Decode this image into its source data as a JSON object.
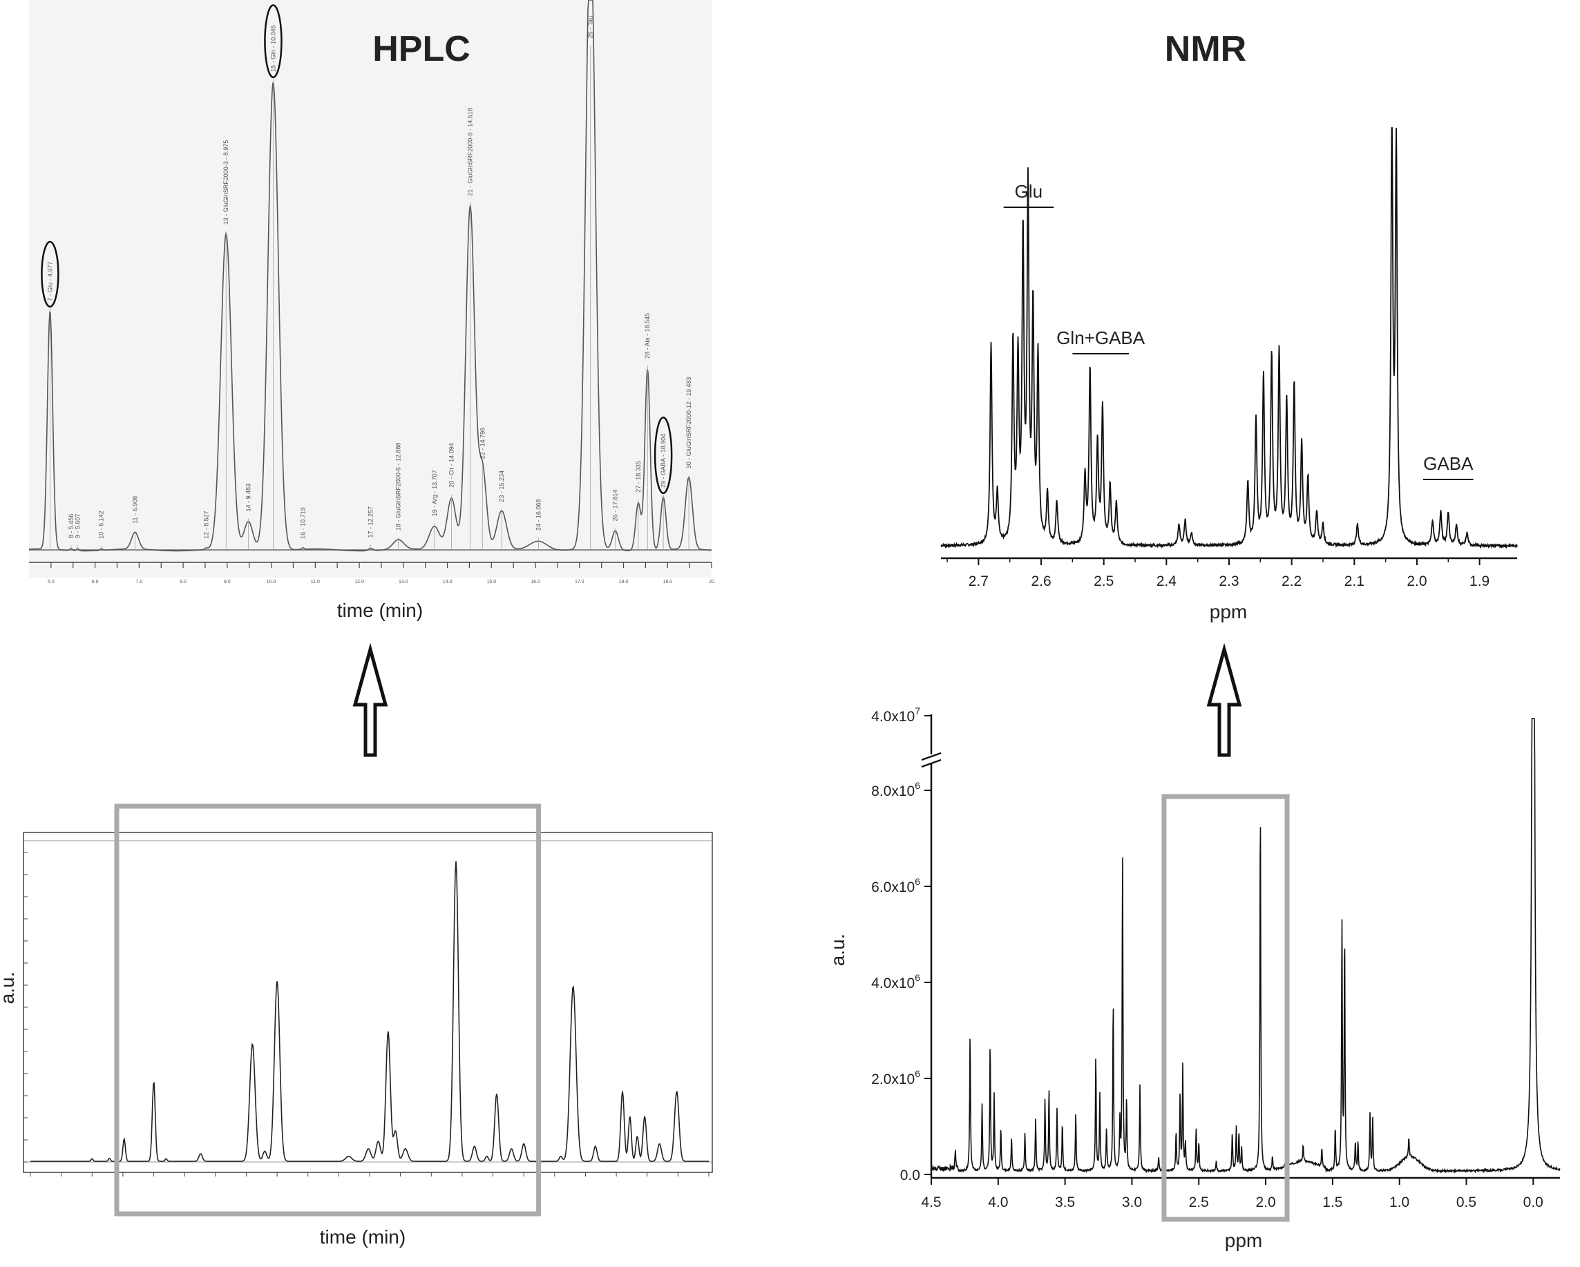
{
  "panels": {
    "hplc_zoom": {
      "title": "HPLC",
      "xlabel": "time (min)"
    },
    "nmr_zoom": {
      "title": "NMR",
      "xlabel": "ppm"
    },
    "hplc_full": {
      "xlabel": "time (min)",
      "ylabel": "a.u."
    },
    "nmr_full": {
      "xlabel": "ppm",
      "ylabel": "a.u."
    }
  },
  "chart_data": [
    {
      "id": "hplc_zoom",
      "type": "line",
      "title": "HPLC",
      "xlabel": "time (min)",
      "ylabel": "",
      "xlim": [
        4.5,
        20.0
      ],
      "ylim": [
        0,
        1.0
      ],
      "xticks": [
        "5.0",
        "5.5",
        "6.0",
        "6.5",
        "7.0",
        "7.5",
        "8.0",
        "8.5",
        "9.0",
        "9.5",
        "10.0",
        "10.5",
        "11.0",
        "11.5",
        "12.0",
        "12.5",
        "13.0",
        "13.5",
        "14.0",
        "14.5",
        "15.0",
        "15.5",
        "16.0",
        "16.5",
        "17.0",
        "17.5",
        "18.0",
        "18.5",
        "19.0",
        "19.5",
        "20"
      ],
      "peaks": [
        {
          "t": 4.977,
          "h": 0.5,
          "w": 0.06,
          "label": "7 - Glu - 4.977",
          "circled": true
        },
        {
          "t": 5.456,
          "h": 0.004,
          "w": 0.03,
          "label": "8 - 5.456"
        },
        {
          "t": 5.607,
          "h": 0.004,
          "w": 0.03,
          "label": "9 - 5.607"
        },
        {
          "t": 6.142,
          "h": 0.003,
          "w": 0.03,
          "label": "10 - 6.142"
        },
        {
          "t": 6.908,
          "h": 0.035,
          "w": 0.08,
          "label": "11 - 6.908"
        },
        {
          "t": 8.527,
          "h": 0.003,
          "w": 0.03,
          "label": "12 - 8.527"
        },
        {
          "t": 8.975,
          "h": 0.66,
          "w": 0.12,
          "label": "13 - GluGlnSRF2000-3 - 8.975"
        },
        {
          "t": 9.483,
          "h": 0.06,
          "w": 0.1,
          "label": "14 - 9.483"
        },
        {
          "t": 10.045,
          "h": 0.98,
          "w": 0.12,
          "label": "15 - Gln - 10.045",
          "circled": true
        },
        {
          "t": 10.719,
          "h": 0.003,
          "w": 0.03,
          "label": "16 - 10.719"
        },
        {
          "t": 12.257,
          "h": 0.005,
          "w": 0.05,
          "label": "17 - 12.257"
        },
        {
          "t": 12.888,
          "h": 0.02,
          "w": 0.12,
          "label": "18 - GluGlnSRF2000-5 - 12.888"
        },
        {
          "t": 13.707,
          "h": 0.05,
          "w": 0.12,
          "label": "19 - Arg - 13.707"
        },
        {
          "t": 14.094,
          "h": 0.11,
          "w": 0.1,
          "label": "20 - Cit - 14.094"
        },
        {
          "t": 14.518,
          "h": 0.72,
          "w": 0.1,
          "label": "21 - GluGlnSRF2000-8 - 14.518"
        },
        {
          "t": 14.796,
          "h": 0.17,
          "w": 0.09,
          "label": "22 - 14.796"
        },
        {
          "t": 15.234,
          "h": 0.08,
          "w": 0.11,
          "label": "23 - 15.234"
        },
        {
          "t": 16.068,
          "h": 0.02,
          "w": 0.2,
          "label": "24 - 16.068"
        },
        {
          "t": 17.25,
          "h": 1.3,
          "w": 0.11,
          "label": "25 - Tau"
        },
        {
          "t": 17.814,
          "h": 0.04,
          "w": 0.07,
          "label": "26 - 17.814"
        },
        {
          "t": 18.335,
          "h": 0.1,
          "w": 0.06,
          "label": "27 - 18.335"
        },
        {
          "t": 18.545,
          "h": 0.38,
          "w": 0.06,
          "label": "28 - Ala - 18.545"
        },
        {
          "t": 18.904,
          "h": 0.11,
          "w": 0.06,
          "label": "29 - GABA - 18.904",
          "circled": true
        },
        {
          "t": 19.483,
          "h": 0.15,
          "w": 0.08,
          "label": "30 - GluGlnSRF2000-12 - 19.483"
        }
      ]
    },
    {
      "id": "nmr_zoom",
      "type": "line",
      "title": "NMR",
      "xlabel": "ppm",
      "ylabel": "",
      "xlim": [
        2.76,
        1.84
      ],
      "ylim": [
        0,
        1.0
      ],
      "xticks": [
        "2.7",
        "2.6",
        "2.5",
        "2.4",
        "2.3",
        "2.2",
        "2.1",
        "2.0",
        "1.9"
      ],
      "annotations": [
        {
          "text": "Glu",
          "from": 2.66,
          "to": 2.58
        },
        {
          "text": "Gln+GABA",
          "from": 2.55,
          "to": 2.46
        },
        {
          "text": "GABA",
          "from": 1.99,
          "to": 1.91
        }
      ],
      "peaks": [
        {
          "ppm": 2.68,
          "h": 0.48
        },
        {
          "ppm": 2.67,
          "h": 0.12
        },
        {
          "ppm": 2.645,
          "h": 0.48
        },
        {
          "ppm": 2.637,
          "h": 0.43
        },
        {
          "ppm": 2.629,
          "h": 0.72
        },
        {
          "ppm": 2.621,
          "h": 0.83
        },
        {
          "ppm": 2.613,
          "h": 0.55
        },
        {
          "ppm": 2.605,
          "h": 0.44
        },
        {
          "ppm": 2.59,
          "h": 0.12
        },
        {
          "ppm": 2.575,
          "h": 0.1
        },
        {
          "ppm": 2.53,
          "h": 0.16
        },
        {
          "ppm": 2.522,
          "h": 0.42
        },
        {
          "ppm": 2.51,
          "h": 0.24
        },
        {
          "ppm": 2.502,
          "h": 0.33
        },
        {
          "ppm": 2.49,
          "h": 0.14
        },
        {
          "ppm": 2.48,
          "h": 0.1
        },
        {
          "ppm": 2.38,
          "h": 0.05
        },
        {
          "ppm": 2.37,
          "h": 0.06
        },
        {
          "ppm": 2.36,
          "h": 0.03
        },
        {
          "ppm": 2.27,
          "h": 0.15
        },
        {
          "ppm": 2.257,
          "h": 0.3
        },
        {
          "ppm": 2.245,
          "h": 0.4
        },
        {
          "ppm": 2.232,
          "h": 0.45
        },
        {
          "ppm": 2.22,
          "h": 0.46
        },
        {
          "ppm": 2.208,
          "h": 0.34
        },
        {
          "ppm": 2.196,
          "h": 0.38
        },
        {
          "ppm": 2.184,
          "h": 0.24
        },
        {
          "ppm": 2.174,
          "h": 0.16
        },
        {
          "ppm": 2.16,
          "h": 0.08
        },
        {
          "ppm": 2.15,
          "h": 0.05
        },
        {
          "ppm": 2.095,
          "h": 0.05
        },
        {
          "ppm": 2.04,
          "h": 1.0
        },
        {
          "ppm": 2.033,
          "h": 0.95
        },
        {
          "ppm": 1.975,
          "h": 0.06
        },
        {
          "ppm": 1.962,
          "h": 0.08
        },
        {
          "ppm": 1.95,
          "h": 0.08
        },
        {
          "ppm": 1.937,
          "h": 0.05
        },
        {
          "ppm": 1.92,
          "h": 0.03
        }
      ]
    },
    {
      "id": "hplc_full",
      "type": "line",
      "title": "",
      "xlabel": "time (min)",
      "ylabel": "a.u.",
      "xlim": [
        0.0,
        27.5
      ],
      "ylim": [
        0,
        1.0
      ],
      "highlight_box": {
        "from": 3.5,
        "to": 20.6
      },
      "peaks": [
        {
          "t": 2.5,
          "h": 0.01,
          "w": 0.04
        },
        {
          "t": 3.2,
          "h": 0.012,
          "w": 0.04
        },
        {
          "t": 3.8,
          "h": 0.09,
          "w": 0.05
        },
        {
          "t": 5.0,
          "h": 0.32,
          "w": 0.06
        },
        {
          "t": 5.5,
          "h": 0.01,
          "w": 0.04
        },
        {
          "t": 6.9,
          "h": 0.03,
          "w": 0.07
        },
        {
          "t": 9.0,
          "h": 0.47,
          "w": 0.11
        },
        {
          "t": 9.5,
          "h": 0.04,
          "w": 0.08
        },
        {
          "t": 10.0,
          "h": 0.72,
          "w": 0.11
        },
        {
          "t": 12.9,
          "h": 0.02,
          "w": 0.12
        },
        {
          "t": 13.7,
          "h": 0.05,
          "w": 0.1
        },
        {
          "t": 14.1,
          "h": 0.08,
          "w": 0.09
        },
        {
          "t": 14.5,
          "h": 0.52,
          "w": 0.09
        },
        {
          "t": 14.8,
          "h": 0.12,
          "w": 0.08
        },
        {
          "t": 15.2,
          "h": 0.05,
          "w": 0.1
        },
        {
          "t": 17.25,
          "h": 1.2,
          "w": 0.1
        },
        {
          "t": 18.0,
          "h": 0.06,
          "w": 0.08
        },
        {
          "t": 18.5,
          "h": 0.02,
          "w": 0.06
        },
        {
          "t": 18.9,
          "h": 0.27,
          "w": 0.08
        },
        {
          "t": 19.5,
          "h": 0.05,
          "w": 0.08
        },
        {
          "t": 20.0,
          "h": 0.07,
          "w": 0.08
        },
        {
          "t": 21.5,
          "h": 0.02,
          "w": 0.06
        },
        {
          "t": 22.0,
          "h": 0.7,
          "w": 0.12
        },
        {
          "t": 22.9,
          "h": 0.06,
          "w": 0.07
        },
        {
          "t": 24.0,
          "h": 0.28,
          "w": 0.07
        },
        {
          "t": 24.3,
          "h": 0.18,
          "w": 0.06
        },
        {
          "t": 24.6,
          "h": 0.1,
          "w": 0.06
        },
        {
          "t": 24.9,
          "h": 0.18,
          "w": 0.07
        },
        {
          "t": 25.5,
          "h": 0.07,
          "w": 0.08
        },
        {
          "t": 26.2,
          "h": 0.28,
          "w": 0.09
        }
      ]
    },
    {
      "id": "nmr_full",
      "type": "line",
      "title": "",
      "xlabel": "ppm",
      "ylabel": "a.u.",
      "xlim": [
        4.5,
        -0.2
      ],
      "y_axis_break": true,
      "yticks": [
        "0.0",
        "2.0x10^6",
        "4.0x10^6",
        "6.0x10^6",
        "8.0x10^6",
        "4.0x10^7"
      ],
      "xticks": [
        "4.5",
        "4.0",
        "3.5",
        "3.0",
        "2.5",
        "2.0",
        "1.5",
        "1.0",
        "0.5",
        "0.0"
      ],
      "highlight_box": {
        "from": 2.76,
        "to": 1.84
      },
      "peaks": [
        {
          "ppm": 4.32,
          "h": 400000.0
        },
        {
          "ppm": 4.21,
          "h": 2900000.0
        },
        {
          "ppm": 4.12,
          "h": 1400000.0
        },
        {
          "ppm": 4.06,
          "h": 2700000.0
        },
        {
          "ppm": 4.03,
          "h": 1600000.0
        },
        {
          "ppm": 3.98,
          "h": 900000.0
        },
        {
          "ppm": 3.9,
          "h": 700000.0
        },
        {
          "ppm": 3.8,
          "h": 800000.0
        },
        {
          "ppm": 3.72,
          "h": 1100000.0
        },
        {
          "ppm": 3.65,
          "h": 1500000.0
        },
        {
          "ppm": 3.62,
          "h": 1700000.0
        },
        {
          "ppm": 3.56,
          "h": 1300000.0
        },
        {
          "ppm": 3.52,
          "h": 1000000.0
        },
        {
          "ppm": 3.42,
          "h": 1200000.0
        },
        {
          "ppm": 3.27,
          "h": 2400000.0
        },
        {
          "ppm": 3.24,
          "h": 1600000.0
        },
        {
          "ppm": 3.19,
          "h": 900000.0
        },
        {
          "ppm": 3.14,
          "h": 3600000.0
        },
        {
          "ppm": 3.09,
          "h": 1000000.0
        },
        {
          "ppm": 3.07,
          "h": 6700000.0
        },
        {
          "ppm": 3.04,
          "h": 1500000.0
        },
        {
          "ppm": 2.94,
          "h": 1800000.0
        },
        {
          "ppm": 2.8,
          "h": 300000.0
        },
        {
          "ppm": 2.67,
          "h": 800000.0
        },
        {
          "ppm": 2.64,
          "h": 1600000.0
        },
        {
          "ppm": 2.62,
          "h": 2200000.0
        },
        {
          "ppm": 2.6,
          "h": 600000.0
        },
        {
          "ppm": 2.52,
          "h": 900000.0
        },
        {
          "ppm": 2.5,
          "h": 600000.0
        },
        {
          "ppm": 2.37,
          "h": 200000.0
        },
        {
          "ppm": 2.25,
          "h": 800000.0
        },
        {
          "ppm": 2.22,
          "h": 900000.0
        },
        {
          "ppm": 2.2,
          "h": 800000.0
        },
        {
          "ppm": 2.18,
          "h": 500000.0
        },
        {
          "ppm": 2.04,
          "h": 7800000.0
        },
        {
          "ppm": 1.95,
          "h": 300000.0
        },
        {
          "ppm": 1.85,
          "h": 200000.0
        },
        {
          "ppm": 1.72,
          "h": 350000.0
        },
        {
          "ppm": 1.58,
          "h": 400000.0
        },
        {
          "ppm": 1.48,
          "h": 900000.0
        },
        {
          "ppm": 1.43,
          "h": 5200000.0
        },
        {
          "ppm": 1.41,
          "h": 5000000.0
        },
        {
          "ppm": 1.33,
          "h": 600000.0
        },
        {
          "ppm": 1.31,
          "h": 600000.0
        },
        {
          "ppm": 1.22,
          "h": 1200000.0
        },
        {
          "ppm": 1.2,
          "h": 1100000.0
        },
        {
          "ppm": 0.93,
          "h": 400000.0
        },
        {
          "ppm": 0.0,
          "h": 40000000.0
        }
      ]
    }
  ]
}
